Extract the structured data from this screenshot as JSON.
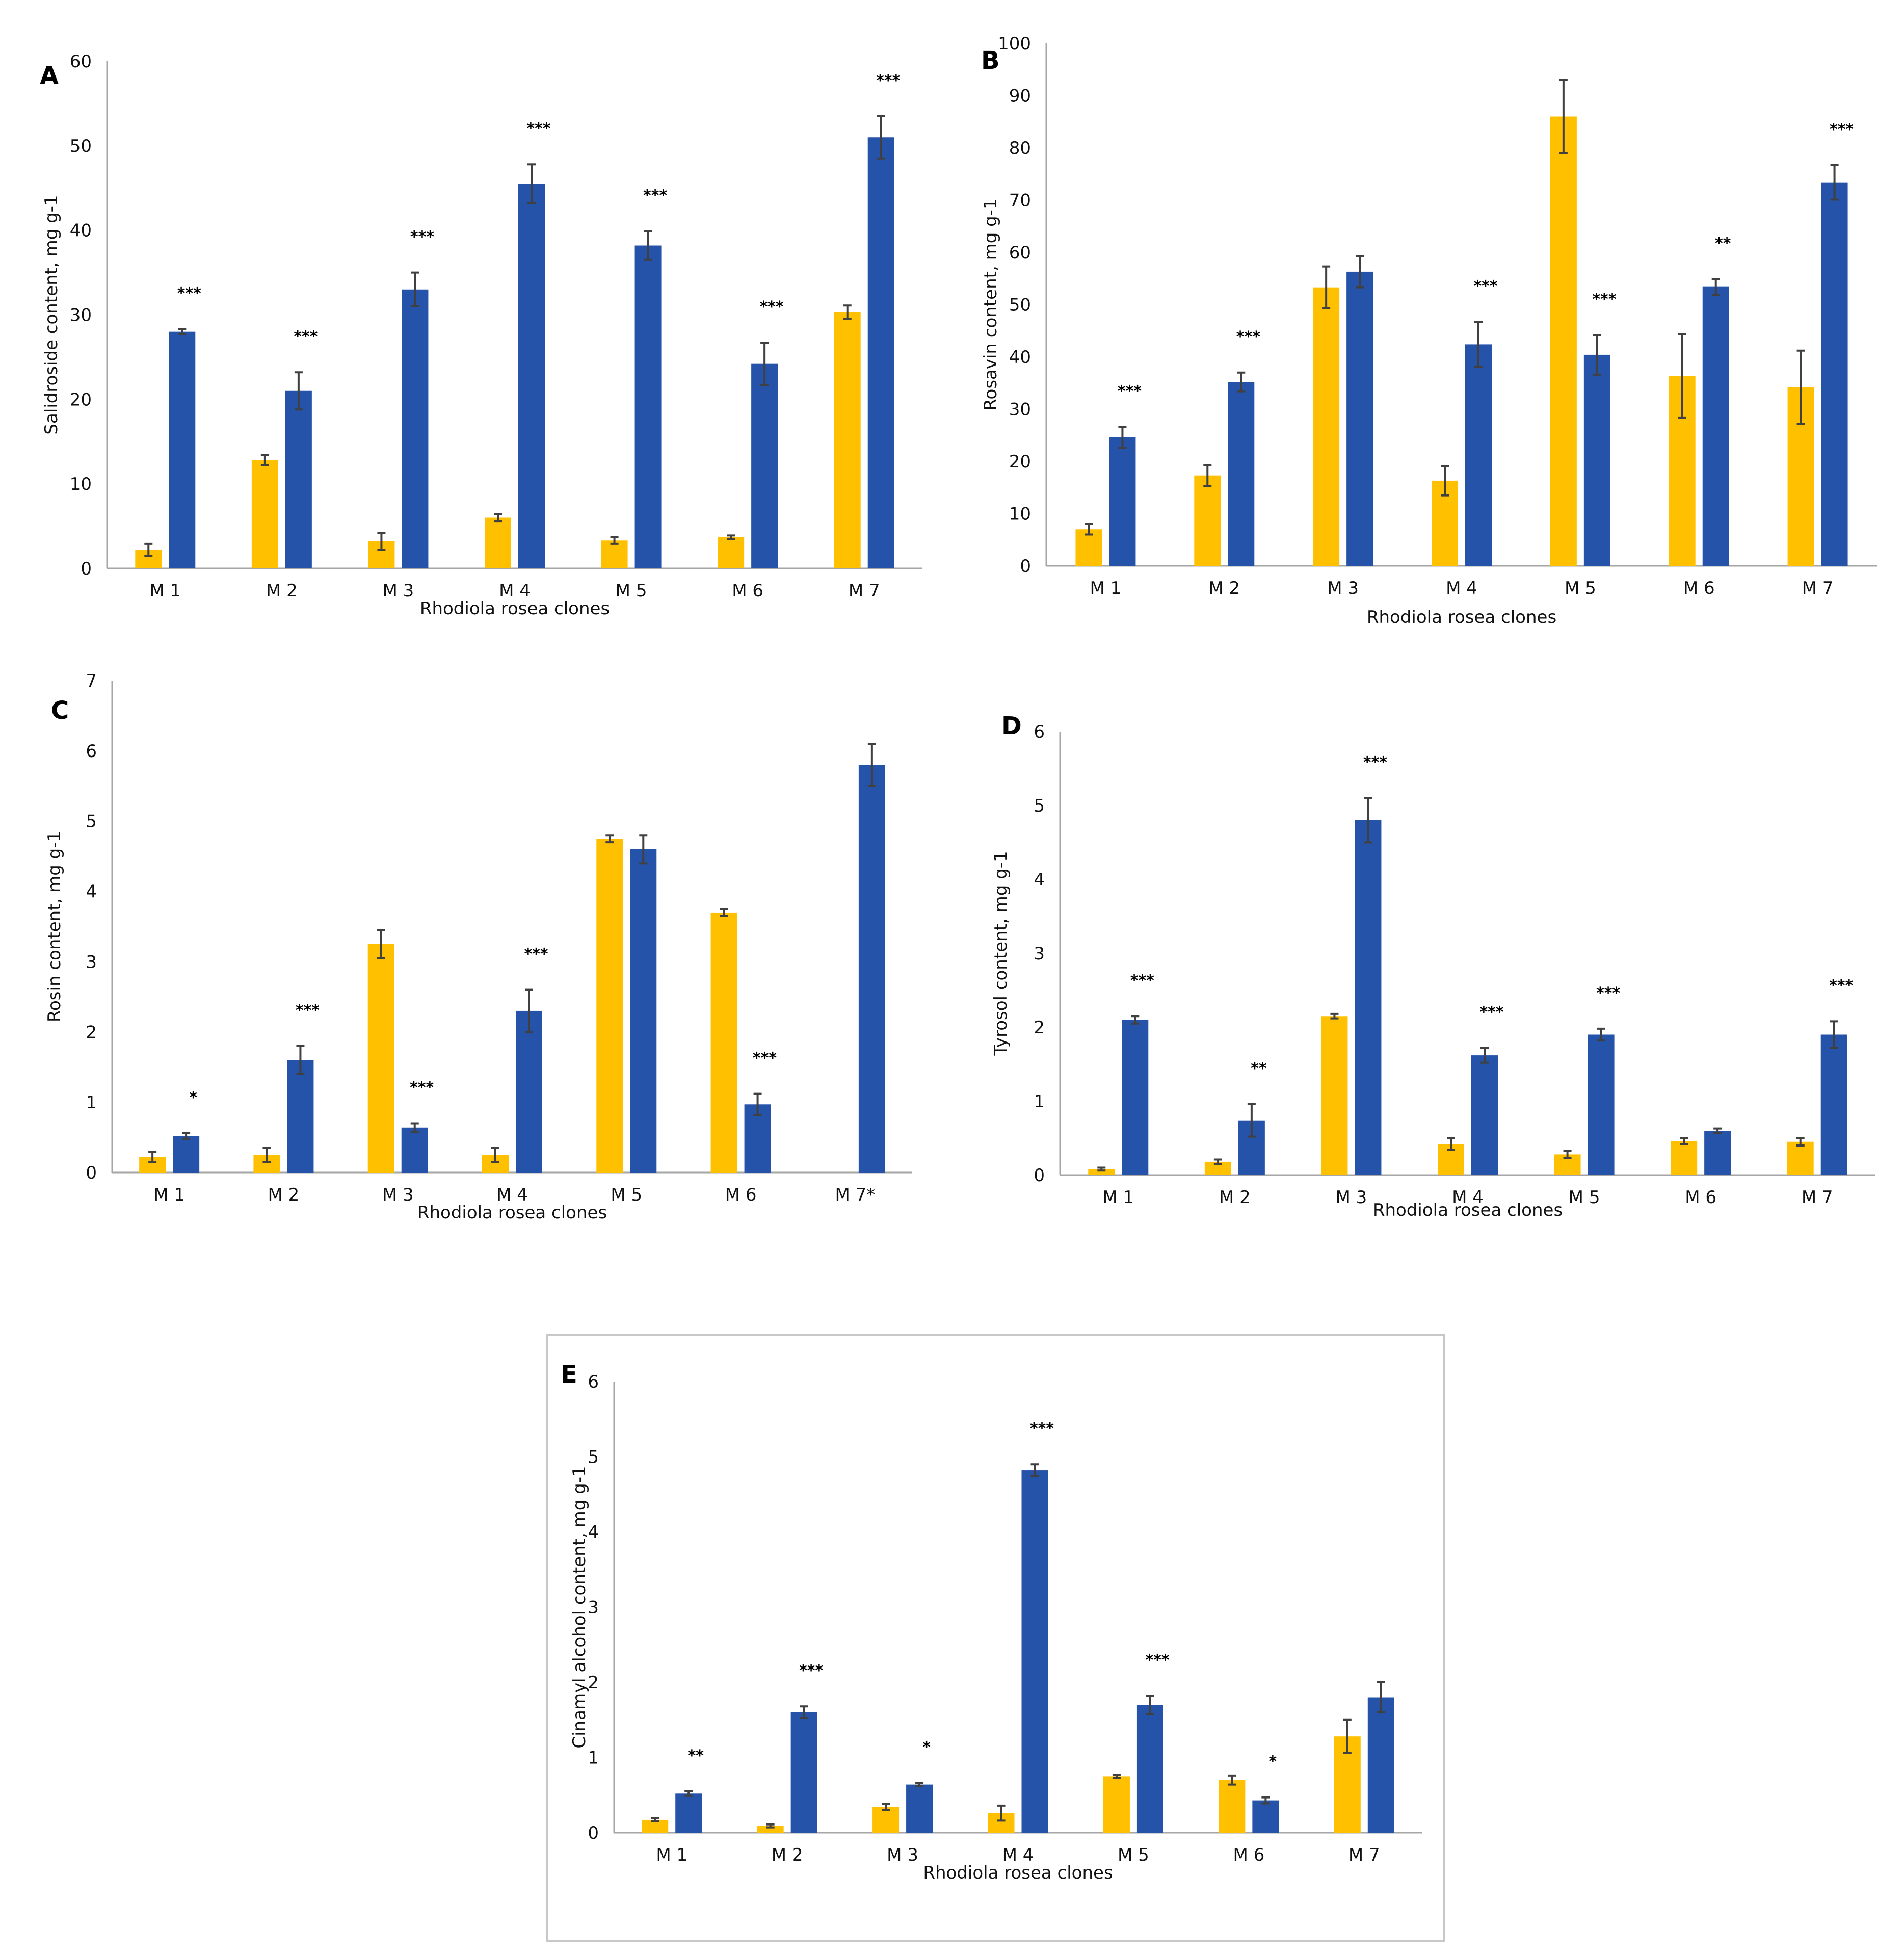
{
  "colors": {
    "series1": "#FFC000",
    "series2": "#2653AA"
  },
  "chart_data": [
    {
      "type": "bar",
      "panel": "A",
      "title": "",
      "xlabel": "Rhodiola rosea clones",
      "ylabel": "Salidroside content, mg g-1",
      "ylim": [
        0,
        60
      ],
      "yticks": [
        0,
        10,
        20,
        30,
        40,
        50,
        60
      ],
      "categories": [
        "M 1",
        "M 2",
        "M 3",
        "M 4",
        "M 5",
        "M 6",
        "M 7"
      ],
      "series": [
        {
          "name": "series 1",
          "values": [
            2.2,
            12.8,
            3.2,
            6.0,
            3.3,
            3.7,
            30.3
          ],
          "errors": [
            0.7,
            0.6,
            1.0,
            0.4,
            0.4,
            0.2,
            0.8
          ]
        },
        {
          "name": "series 2",
          "values": [
            28.0,
            21.0,
            33.0,
            45.5,
            38.2,
            24.2,
            51.0
          ],
          "errors": [
            0.3,
            2.2,
            2.0,
            2.3,
            1.7,
            2.5,
            2.5
          ]
        }
      ],
      "significance": [
        "***",
        "***",
        "***",
        "***",
        "***",
        "***",
        "***"
      ]
    },
    {
      "type": "bar",
      "panel": "B",
      "title": "",
      "xlabel": "Rhodiola rosea clones",
      "ylabel": "Rosavin content, mg g-1",
      "ylim": [
        0,
        100
      ],
      "yticks": [
        0,
        10,
        20,
        30,
        40,
        50,
        60,
        70,
        80,
        90,
        100
      ],
      "categories": [
        "M 1",
        "M 2",
        "M 3",
        "M 4",
        "M 5",
        "M 6",
        "M 7"
      ],
      "series": [
        {
          "name": "series 1",
          "values": [
            7.0,
            17.3,
            53.3,
            16.3,
            86.0,
            36.3,
            34.2
          ],
          "errors": [
            1.0,
            2.0,
            4.0,
            2.8,
            7.0,
            8.0,
            7.0
          ]
        },
        {
          "name": "series 2",
          "values": [
            24.6,
            35.2,
            56.3,
            42.4,
            40.4,
            53.4,
            73.4
          ],
          "errors": [
            2.0,
            1.8,
            3.0,
            4.3,
            3.8,
            1.5,
            3.3
          ]
        }
      ],
      "significance": [
        "***",
        "***",
        "",
        "***",
        "***",
        "**",
        "***"
      ]
    },
    {
      "type": "bar",
      "panel": "C",
      "title": "",
      "xlabel": "Rhodiola rosea clones",
      "ylabel": "Rosin content, mg g-1",
      "ylim": [
        0,
        7
      ],
      "yticks": [
        0,
        1,
        2,
        3,
        4,
        5,
        6,
        7
      ],
      "categories": [
        "M 1",
        "M 2",
        "M 3",
        "M 4",
        "M 5",
        "M 6",
        "M 7*"
      ],
      "series": [
        {
          "name": "series 1",
          "values": [
            0.22,
            0.25,
            3.25,
            0.25,
            4.75,
            3.7,
            null
          ],
          "errors": [
            0.07,
            0.1,
            0.2,
            0.1,
            0.05,
            0.05,
            null
          ]
        },
        {
          "name": "series 2",
          "values": [
            0.52,
            1.6,
            0.64,
            2.3,
            4.6,
            0.97,
            5.8
          ],
          "errors": [
            0.04,
            0.2,
            0.06,
            0.3,
            0.2,
            0.15,
            0.3
          ]
        }
      ],
      "significance": [
        "*",
        "***",
        "***",
        "***",
        "",
        "***",
        ""
      ]
    },
    {
      "type": "bar",
      "panel": "D",
      "title": "",
      "xlabel": "Rhodiola rosea clones",
      "ylabel": "Tyrosol  content,  mg g-1",
      "ylim": [
        0,
        6
      ],
      "yticks": [
        0,
        1,
        2,
        3,
        4,
        5,
        6
      ],
      "categories": [
        "M 1",
        "M 2",
        "M 3",
        "M 4",
        "M 5",
        "M 6",
        "M 7"
      ],
      "series": [
        {
          "name": "series 1",
          "values": [
            0.08,
            0.18,
            2.15,
            0.42,
            0.28,
            0.46,
            0.45
          ],
          "errors": [
            0.02,
            0.03,
            0.03,
            0.08,
            0.05,
            0.04,
            0.05
          ]
        },
        {
          "name": "series 2",
          "values": [
            2.1,
            0.74,
            4.8,
            1.62,
            1.9,
            0.6,
            1.9
          ],
          "errors": [
            0.05,
            0.22,
            0.3,
            0.1,
            0.08,
            0.03,
            0.18
          ]
        }
      ],
      "significance": [
        "***",
        "**",
        "***",
        "***",
        "***",
        "",
        "***"
      ]
    },
    {
      "type": "bar",
      "panel": "E",
      "title": "",
      "xlabel": "Rhodiola rosea clones",
      "ylabel": "Cinamyl alcohol content, mg g-1",
      "ylim": [
        0,
        6
      ],
      "yticks": [
        0,
        1,
        2,
        3,
        4,
        5,
        6
      ],
      "categories": [
        "M 1",
        "M 2",
        "M 3",
        "M 4",
        "M 5",
        "M 6",
        "M 7"
      ],
      "series": [
        {
          "name": "series 1",
          "values": [
            0.17,
            0.09,
            0.34,
            0.26,
            0.75,
            0.7,
            1.28
          ],
          "errors": [
            0.02,
            0.02,
            0.04,
            0.1,
            0.02,
            0.06,
            0.22
          ]
        },
        {
          "name": "series 2",
          "values": [
            0.52,
            1.6,
            0.64,
            4.82,
            1.7,
            0.43,
            1.8
          ],
          "errors": [
            0.03,
            0.08,
            0.02,
            0.08,
            0.12,
            0.04,
            0.2
          ]
        }
      ],
      "significance": [
        "**",
        "***",
        "*",
        "***",
        "***",
        "*",
        ""
      ]
    }
  ]
}
